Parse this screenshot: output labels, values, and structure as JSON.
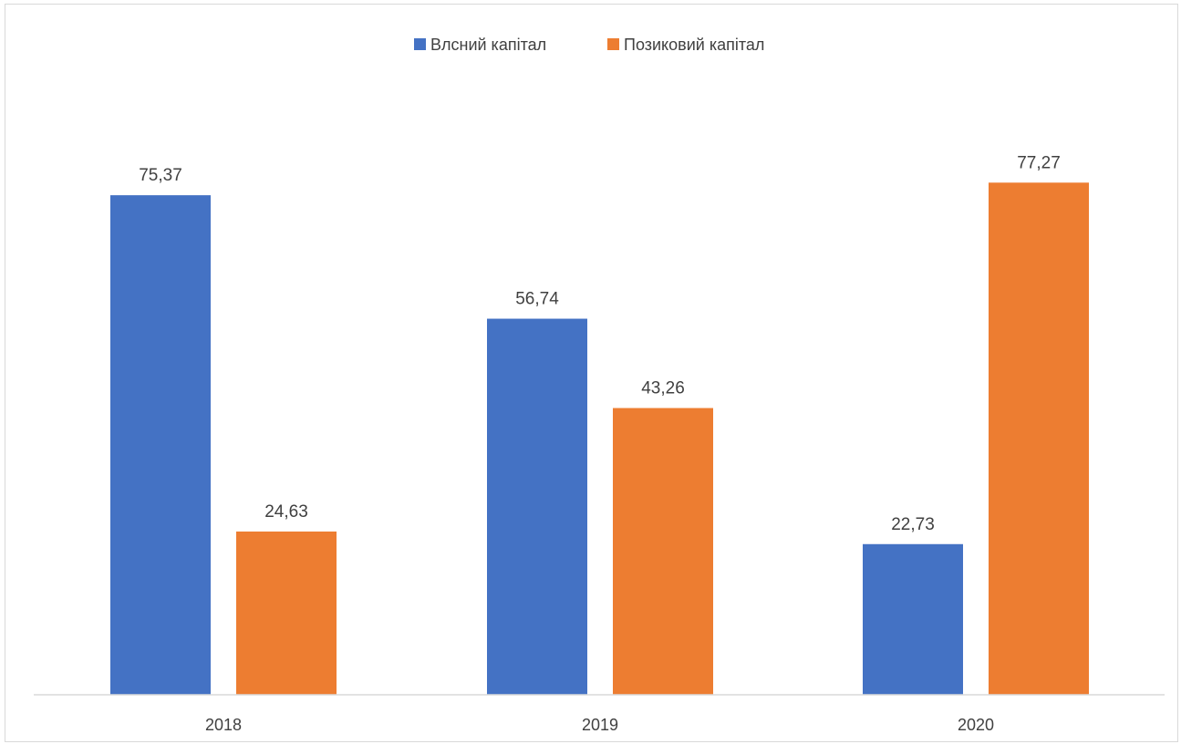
{
  "chart_data": {
    "type": "bar",
    "categories": [
      "2018",
      "2019",
      "2020"
    ],
    "series": [
      {
        "name": "Влсний капітал",
        "color": "#4472C4",
        "values": [
          75.37,
          56.74,
          22.73
        ],
        "labels": [
          "75,37",
          "56,74",
          "22,73"
        ]
      },
      {
        "name": "Позиковий капітал",
        "color": "#ED7D31",
        "values": [
          24.63,
          43.26,
          77.27
        ],
        "labels": [
          "24,63",
          "43,26",
          "77,27"
        ]
      }
    ],
    "ylim": [
      0,
      78
    ],
    "grid": false,
    "legend_position": "top-center"
  }
}
